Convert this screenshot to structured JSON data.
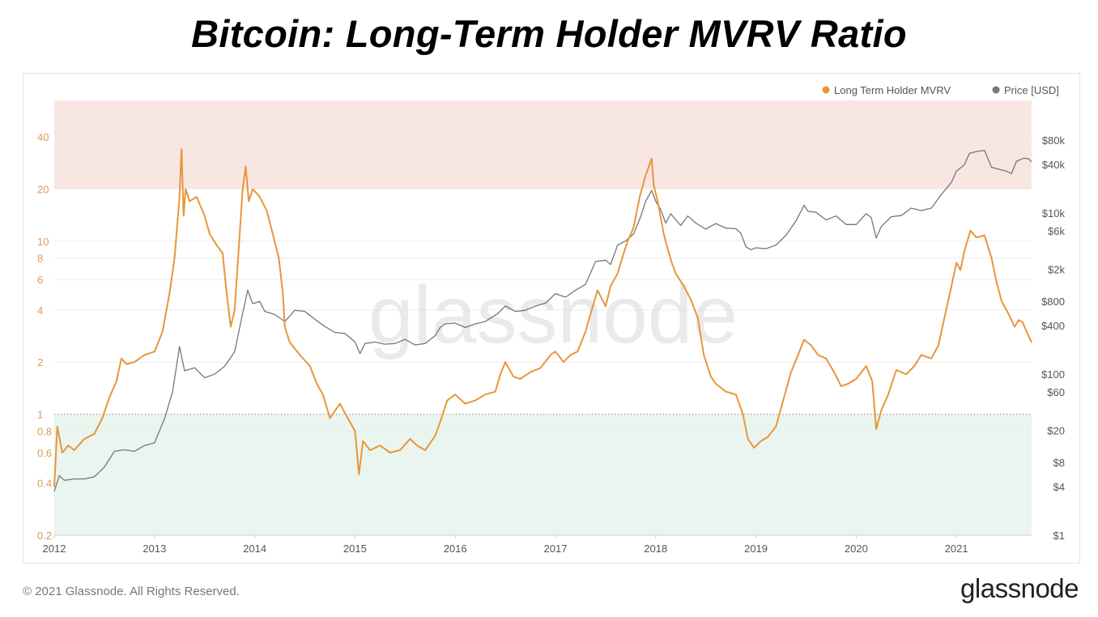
{
  "title": "Bitcoin: Long-Term Holder MVRV Ratio",
  "footer": {
    "copyright": "© 2021 Glassnode. All Rights Reserved.",
    "logo": "glassnode"
  },
  "watermark": "glassnode",
  "chart_data": {
    "type": "line",
    "title": "Bitcoin: Long-Term Holder MVRV Ratio",
    "xlabel": "",
    "ylabel": "",
    "x_ticks": [
      "2012",
      "2013",
      "2014",
      "2015",
      "2016",
      "2017",
      "2018",
      "2019",
      "2020",
      "2021"
    ],
    "x_range": [
      2012.0,
      2021.75
    ],
    "y_left": {
      "scale": "log",
      "range": [
        0.2,
        65
      ],
      "ticks": [
        0.2,
        0.4,
        0.6,
        0.8,
        1,
        2,
        4,
        6,
        8,
        10,
        20,
        40
      ],
      "tick_labels": [
        "0.2",
        "0.4",
        "0.6",
        "0.8",
        "1",
        "2",
        "4",
        "6",
        "8",
        "10",
        "20",
        "40"
      ]
    },
    "y_right": {
      "scale": "log",
      "range": [
        1,
        250000
      ],
      "ticks": [
        1,
        4,
        8,
        20,
        60,
        100,
        400,
        800,
        2000,
        6000,
        10000,
        40000,
        80000
      ],
      "tick_labels": [
        "$1",
        "$4",
        "$8",
        "$20",
        "$60",
        "$100",
        "$400",
        "$800",
        "$2k",
        "$6k",
        "$10k",
        "$40k",
        "$80k"
      ]
    },
    "zones": [
      {
        "axis": "left",
        "from": 20,
        "to": 65,
        "color": "#f8e6e3"
      },
      {
        "axis": "left",
        "from": 0.2,
        "to": 1,
        "color": "#e9f5ee"
      }
    ],
    "reference_line": {
      "axis": "left",
      "value": 1,
      "style": "dotted"
    },
    "legend": {
      "position": "top-right"
    },
    "series": [
      {
        "name": "Long Term Holder MVRV",
        "axis": "left",
        "color": "#e8963a",
        "points": [
          [
            2012.0,
            0.38
          ],
          [
            2012.03,
            0.85
          ],
          [
            2012.08,
            0.6
          ],
          [
            2012.14,
            0.66
          ],
          [
            2012.2,
            0.62
          ],
          [
            2012.3,
            0.72
          ],
          [
            2012.4,
            0.77
          ],
          [
            2012.48,
            0.95
          ],
          [
            2012.55,
            1.25
          ],
          [
            2012.62,
            1.55
          ],
          [
            2012.67,
            2.1
          ],
          [
            2012.72,
            1.95
          ],
          [
            2012.8,
            2.0
          ],
          [
            2012.9,
            2.2
          ],
          [
            2013.0,
            2.3
          ],
          [
            2013.08,
            3.0
          ],
          [
            2013.15,
            5.0
          ],
          [
            2013.2,
            8.0
          ],
          [
            2013.25,
            18
          ],
          [
            2013.27,
            34
          ],
          [
            2013.29,
            14
          ],
          [
            2013.31,
            20
          ],
          [
            2013.35,
            17
          ],
          [
            2013.42,
            18
          ],
          [
            2013.5,
            14
          ],
          [
            2013.55,
            11
          ],
          [
            2013.62,
            9.5
          ],
          [
            2013.68,
            8.5
          ],
          [
            2013.72,
            5.0
          ],
          [
            2013.76,
            3.2
          ],
          [
            2013.8,
            4.0
          ],
          [
            2013.84,
            9
          ],
          [
            2013.88,
            20
          ],
          [
            2013.91,
            27
          ],
          [
            2013.94,
            17
          ],
          [
            2013.98,
            20
          ],
          [
            2014.05,
            18
          ],
          [
            2014.12,
            15
          ],
          [
            2014.18,
            11
          ],
          [
            2014.24,
            8
          ],
          [
            2014.28,
            5.0
          ],
          [
            2014.3,
            3.2
          ],
          [
            2014.35,
            2.6
          ],
          [
            2014.45,
            2.2
          ],
          [
            2014.55,
            1.9
          ],
          [
            2014.62,
            1.5
          ],
          [
            2014.68,
            1.3
          ],
          [
            2014.75,
            0.95
          ],
          [
            2014.85,
            1.15
          ],
          [
            2014.95,
            0.9
          ],
          [
            2015.0,
            0.8
          ],
          [
            2015.04,
            0.45
          ],
          [
            2015.08,
            0.7
          ],
          [
            2015.15,
            0.62
          ],
          [
            2015.25,
            0.66
          ],
          [
            2015.35,
            0.6
          ],
          [
            2015.45,
            0.62
          ],
          [
            2015.55,
            0.72
          ],
          [
            2015.62,
            0.66
          ],
          [
            2015.7,
            0.62
          ],
          [
            2015.8,
            0.75
          ],
          [
            2015.85,
            0.9
          ],
          [
            2015.92,
            1.2
          ],
          [
            2016.0,
            1.3
          ],
          [
            2016.1,
            1.15
          ],
          [
            2016.2,
            1.2
          ],
          [
            2016.3,
            1.3
          ],
          [
            2016.4,
            1.35
          ],
          [
            2016.45,
            1.7
          ],
          [
            2016.5,
            2.0
          ],
          [
            2016.58,
            1.65
          ],
          [
            2016.65,
            1.6
          ],
          [
            2016.75,
            1.75
          ],
          [
            2016.85,
            1.85
          ],
          [
            2016.95,
            2.2
          ],
          [
            2017.0,
            2.3
          ],
          [
            2017.08,
            2.0
          ],
          [
            2017.15,
            2.2
          ],
          [
            2017.22,
            2.3
          ],
          [
            2017.3,
            3.0
          ],
          [
            2017.35,
            3.8
          ],
          [
            2017.42,
            5.2
          ],
          [
            2017.5,
            4.2
          ],
          [
            2017.55,
            5.5
          ],
          [
            2017.62,
            6.5
          ],
          [
            2017.68,
            8.5
          ],
          [
            2017.72,
            10
          ],
          [
            2017.78,
            12
          ],
          [
            2017.84,
            18
          ],
          [
            2017.9,
            24
          ],
          [
            2017.96,
            30
          ],
          [
            2017.98,
            21
          ],
          [
            2018.02,
            17
          ],
          [
            2018.08,
            11
          ],
          [
            2018.12,
            9
          ],
          [
            2018.16,
            7.5
          ],
          [
            2018.2,
            6.5
          ],
          [
            2018.28,
            5.5
          ],
          [
            2018.35,
            4.6
          ],
          [
            2018.42,
            3.6
          ],
          [
            2018.48,
            2.2
          ],
          [
            2018.55,
            1.65
          ],
          [
            2018.6,
            1.5
          ],
          [
            2018.7,
            1.35
          ],
          [
            2018.8,
            1.3
          ],
          [
            2018.87,
            1.0
          ],
          [
            2018.92,
            0.72
          ],
          [
            2018.98,
            0.64
          ],
          [
            2019.05,
            0.7
          ],
          [
            2019.12,
            0.74
          ],
          [
            2019.2,
            0.85
          ],
          [
            2019.28,
            1.25
          ],
          [
            2019.35,
            1.75
          ],
          [
            2019.42,
            2.2
          ],
          [
            2019.48,
            2.7
          ],
          [
            2019.55,
            2.5
          ],
          [
            2019.62,
            2.2
          ],
          [
            2019.7,
            2.1
          ],
          [
            2019.78,
            1.75
          ],
          [
            2019.85,
            1.45
          ],
          [
            2019.92,
            1.5
          ],
          [
            2020.0,
            1.6
          ],
          [
            2020.1,
            1.9
          ],
          [
            2020.16,
            1.55
          ],
          [
            2020.2,
            0.82
          ],
          [
            2020.25,
            1.05
          ],
          [
            2020.32,
            1.3
          ],
          [
            2020.4,
            1.8
          ],
          [
            2020.5,
            1.7
          ],
          [
            2020.58,
            1.9
          ],
          [
            2020.65,
            2.2
          ],
          [
            2020.75,
            2.1
          ],
          [
            2020.82,
            2.5
          ],
          [
            2020.88,
            3.6
          ],
          [
            2020.95,
            5.5
          ],
          [
            2021.0,
            7.5
          ],
          [
            2021.04,
            6.8
          ],
          [
            2021.08,
            8.8
          ],
          [
            2021.14,
            11.5
          ],
          [
            2021.2,
            10.5
          ],
          [
            2021.28,
            10.8
          ],
          [
            2021.35,
            8.0
          ],
          [
            2021.4,
            5.8
          ],
          [
            2021.45,
            4.5
          ],
          [
            2021.52,
            3.8
          ],
          [
            2021.58,
            3.2
          ],
          [
            2021.62,
            3.5
          ],
          [
            2021.66,
            3.4
          ],
          [
            2021.7,
            3.0
          ],
          [
            2021.75,
            2.6
          ]
        ]
      },
      {
        "name": "Price [USD]",
        "axis": "right",
        "color": "#777777",
        "points": [
          [
            2012.0,
            3.5
          ],
          [
            2012.05,
            5.5
          ],
          [
            2012.1,
            4.8
          ],
          [
            2012.2,
            5.0
          ],
          [
            2012.3,
            5.0
          ],
          [
            2012.4,
            5.3
          ],
          [
            2012.5,
            7.0
          ],
          [
            2012.6,
            11
          ],
          [
            2012.7,
            11.5
          ],
          [
            2012.8,
            11
          ],
          [
            2012.9,
            13
          ],
          [
            2013.0,
            14
          ],
          [
            2013.1,
            28
          ],
          [
            2013.18,
            60
          ],
          [
            2013.25,
            220
          ],
          [
            2013.3,
            110
          ],
          [
            2013.4,
            120
          ],
          [
            2013.5,
            90
          ],
          [
            2013.6,
            100
          ],
          [
            2013.7,
            125
          ],
          [
            2013.8,
            190
          ],
          [
            2013.87,
            500
          ],
          [
            2013.93,
            1100
          ],
          [
            2013.98,
            750
          ],
          [
            2014.05,
            800
          ],
          [
            2014.1,
            600
          ],
          [
            2014.2,
            550
          ],
          [
            2014.3,
            450
          ],
          [
            2014.4,
            620
          ],
          [
            2014.5,
            600
          ],
          [
            2014.6,
            480
          ],
          [
            2014.7,
            390
          ],
          [
            2014.8,
            330
          ],
          [
            2014.9,
            320
          ],
          [
            2015.0,
            250
          ],
          [
            2015.05,
            180
          ],
          [
            2015.1,
            240
          ],
          [
            2015.2,
            250
          ],
          [
            2015.3,
            235
          ],
          [
            2015.4,
            240
          ],
          [
            2015.5,
            270
          ],
          [
            2015.6,
            230
          ],
          [
            2015.7,
            240
          ],
          [
            2015.8,
            300
          ],
          [
            2015.85,
            380
          ],
          [
            2015.9,
            420
          ],
          [
            2016.0,
            430
          ],
          [
            2016.1,
            380
          ],
          [
            2016.2,
            420
          ],
          [
            2016.3,
            450
          ],
          [
            2016.42,
            560
          ],
          [
            2016.5,
            700
          ],
          [
            2016.6,
            600
          ],
          [
            2016.7,
            620
          ],
          [
            2016.8,
            700
          ],
          [
            2016.9,
            760
          ],
          [
            2017.0,
            1000
          ],
          [
            2017.1,
            900
          ],
          [
            2017.2,
            1100
          ],
          [
            2017.3,
            1300
          ],
          [
            2017.4,
            2500
          ],
          [
            2017.5,
            2600
          ],
          [
            2017.55,
            2300
          ],
          [
            2017.62,
            4000
          ],
          [
            2017.7,
            4500
          ],
          [
            2017.78,
            5500
          ],
          [
            2017.85,
            9000
          ],
          [
            2017.9,
            14000
          ],
          [
            2017.96,
            19000
          ],
          [
            2018.0,
            14000
          ],
          [
            2018.05,
            11000
          ],
          [
            2018.1,
            7500
          ],
          [
            2018.15,
            9800
          ],
          [
            2018.25,
            7000
          ],
          [
            2018.32,
            9200
          ],
          [
            2018.4,
            7500
          ],
          [
            2018.5,
            6300
          ],
          [
            2018.6,
            7400
          ],
          [
            2018.7,
            6500
          ],
          [
            2018.8,
            6400
          ],
          [
            2018.85,
            5600
          ],
          [
            2018.9,
            3800
          ],
          [
            2018.95,
            3500
          ],
          [
            2019.0,
            3700
          ],
          [
            2019.1,
            3600
          ],
          [
            2019.2,
            4000
          ],
          [
            2019.3,
            5300
          ],
          [
            2019.4,
            8000
          ],
          [
            2019.48,
            12500
          ],
          [
            2019.52,
            10500
          ],
          [
            2019.6,
            10200
          ],
          [
            2019.7,
            8200
          ],
          [
            2019.8,
            9200
          ],
          [
            2019.9,
            7200
          ],
          [
            2020.0,
            7200
          ],
          [
            2020.1,
            9800
          ],
          [
            2020.15,
            8800
          ],
          [
            2020.2,
            4900
          ],
          [
            2020.25,
            6800
          ],
          [
            2020.35,
            9000
          ],
          [
            2020.45,
            9300
          ],
          [
            2020.55,
            11500
          ],
          [
            2020.65,
            10700
          ],
          [
            2020.75,
            11500
          ],
          [
            2020.85,
            17000
          ],
          [
            2020.95,
            24000
          ],
          [
            2021.0,
            33000
          ],
          [
            2021.08,
            40000
          ],
          [
            2021.13,
            55000
          ],
          [
            2021.2,
            58000
          ],
          [
            2021.28,
            60000
          ],
          [
            2021.35,
            37000
          ],
          [
            2021.42,
            35000
          ],
          [
            2021.5,
            33000
          ],
          [
            2021.55,
            31000
          ],
          [
            2021.6,
            44000
          ],
          [
            2021.67,
            48000
          ],
          [
            2021.72,
            47000
          ],
          [
            2021.75,
            43000
          ]
        ]
      }
    ]
  }
}
